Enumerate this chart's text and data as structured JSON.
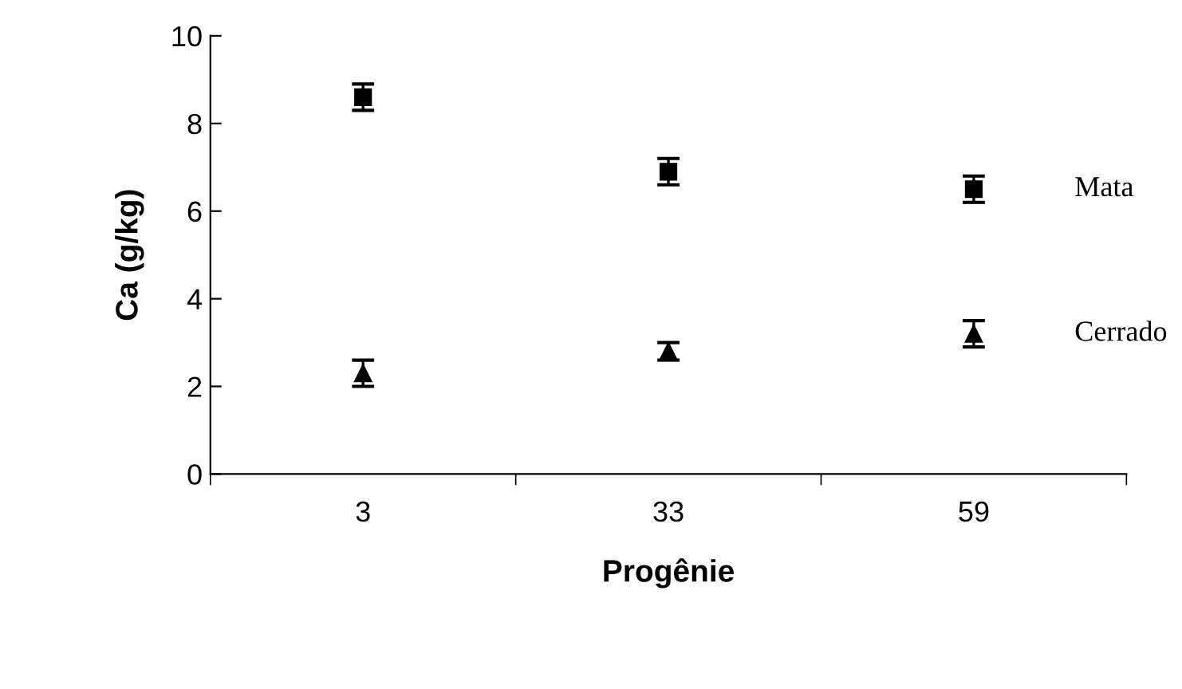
{
  "chart_data": {
    "type": "scatter",
    "xlabel": "Progênie",
    "ylabel": "Ca (g/kg)",
    "categories": [
      "3",
      "33",
      "59"
    ],
    "series": [
      {
        "name": "Mata",
        "color": "#000000",
        "marker": "square",
        "values": [
          8.6,
          6.9,
          6.5
        ],
        "errors": [
          0.3,
          0.3,
          0.3
        ]
      },
      {
        "name": "Cerrado",
        "color": "#000000",
        "marker": "triangle",
        "values": [
          2.3,
          2.8,
          3.2
        ],
        "errors": [
          0.3,
          0.2,
          0.3
        ]
      }
    ],
    "ylim": [
      0,
      10
    ],
    "yticks": [
      0,
      2,
      4,
      6,
      8,
      10
    ],
    "grid": false,
    "legend": false
  }
}
